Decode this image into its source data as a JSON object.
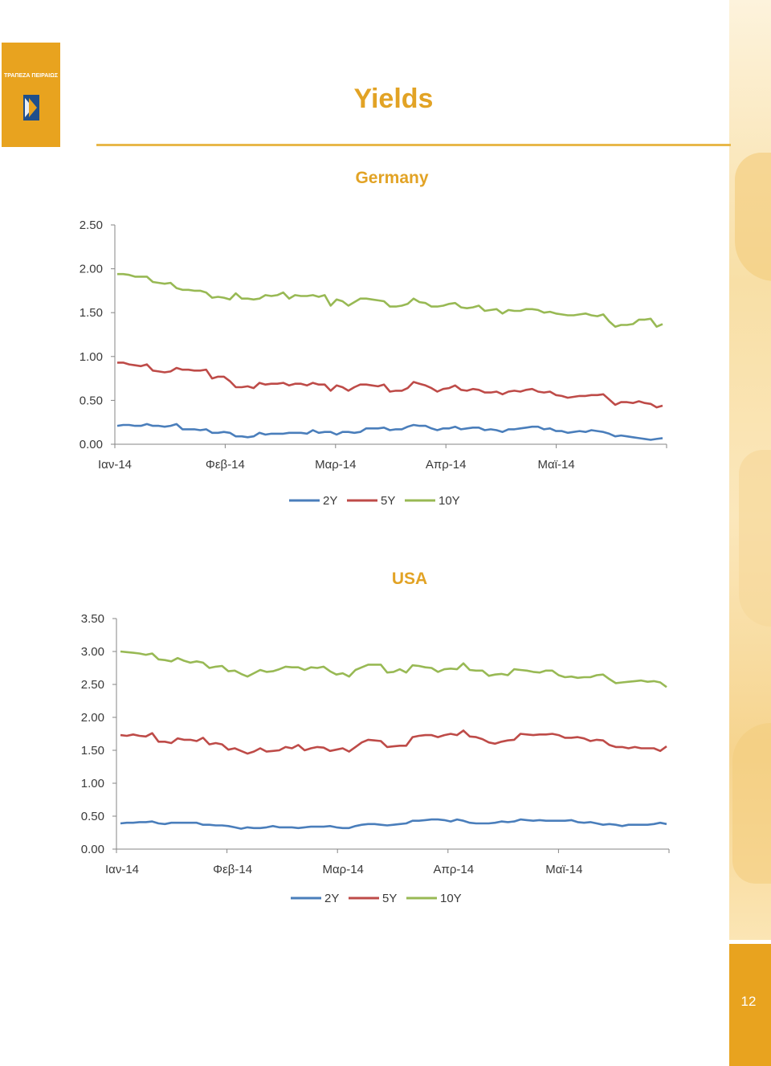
{
  "logo": {
    "text": "ΤΡΑΠΕΖΑ ΠΕΙΡΑΙΩΣ",
    "icon": "bank-logo-icon",
    "color": "#e8a31f"
  },
  "page": {
    "title": "Yields",
    "number": "12"
  },
  "colors": {
    "accent": "#e2a325",
    "series_2Y": "#4a7ebb",
    "series_5Y": "#be4b48",
    "series_10Y": "#98b954"
  },
  "chart_data": [
    {
      "type": "line",
      "title": "Germany",
      "xlabel": "",
      "ylabel": "",
      "ylim": [
        0,
        2.5
      ],
      "yticks": [
        "0.00",
        "0.50",
        "1.00",
        "1.50",
        "2.00",
        "2.50"
      ],
      "xticks": [
        "Ιαν-14",
        "Φεβ-14",
        "Μαρ-14",
        "Απρ-14",
        "Μαϊ-14"
      ],
      "legend": "bottom",
      "grid": false,
      "series": [
        {
          "name": "2Y",
          "values": [
            0.21,
            0.22,
            0.22,
            0.21,
            0.21,
            0.23,
            0.21,
            0.21,
            0.2,
            0.21,
            0.23,
            0.17,
            0.17,
            0.17,
            0.16,
            0.17,
            0.13,
            0.13,
            0.14,
            0.13,
            0.09,
            0.09,
            0.08,
            0.09,
            0.13,
            0.11,
            0.12,
            0.12,
            0.12,
            0.13,
            0.13,
            0.13,
            0.12,
            0.16,
            0.13,
            0.14,
            0.14,
            0.11,
            0.14,
            0.14,
            0.13,
            0.14,
            0.18,
            0.18,
            0.18,
            0.19,
            0.16,
            0.17,
            0.17,
            0.2,
            0.22,
            0.21,
            0.21,
            0.18,
            0.16,
            0.18,
            0.18,
            0.2,
            0.17,
            0.18,
            0.19,
            0.19,
            0.16,
            0.17,
            0.16,
            0.14,
            0.17,
            0.17,
            0.18,
            0.19,
            0.2,
            0.2,
            0.17,
            0.18,
            0.15,
            0.15,
            0.13,
            0.14,
            0.15,
            0.14,
            0.16,
            0.15,
            0.14,
            0.12,
            0.09,
            0.1,
            0.09,
            0.08,
            0.07,
            0.06,
            0.05,
            0.06,
            0.07
          ]
        },
        {
          "name": "5Y",
          "values": [
            0.93,
            0.93,
            0.91,
            0.9,
            0.89,
            0.91,
            0.84,
            0.83,
            0.82,
            0.83,
            0.87,
            0.85,
            0.85,
            0.84,
            0.84,
            0.85,
            0.75,
            0.77,
            0.77,
            0.72,
            0.65,
            0.65,
            0.66,
            0.64,
            0.7,
            0.68,
            0.69,
            0.69,
            0.7,
            0.67,
            0.69,
            0.69,
            0.67,
            0.7,
            0.68,
            0.68,
            0.61,
            0.67,
            0.65,
            0.61,
            0.65,
            0.68,
            0.68,
            0.67,
            0.66,
            0.68,
            0.6,
            0.61,
            0.61,
            0.64,
            0.71,
            0.69,
            0.67,
            0.64,
            0.6,
            0.63,
            0.64,
            0.67,
            0.62,
            0.61,
            0.63,
            0.62,
            0.59,
            0.59,
            0.6,
            0.57,
            0.6,
            0.61,
            0.6,
            0.62,
            0.63,
            0.6,
            0.59,
            0.6,
            0.56,
            0.55,
            0.53,
            0.54,
            0.55,
            0.55,
            0.56,
            0.56,
            0.57,
            0.51,
            0.45,
            0.48,
            0.48,
            0.47,
            0.49,
            0.47,
            0.46,
            0.42,
            0.44
          ]
        },
        {
          "name": "10Y",
          "values": [
            1.94,
            1.94,
            1.93,
            1.91,
            1.91,
            1.91,
            1.85,
            1.84,
            1.83,
            1.84,
            1.78,
            1.76,
            1.76,
            1.75,
            1.75,
            1.73,
            1.67,
            1.68,
            1.67,
            1.65,
            1.72,
            1.66,
            1.66,
            1.65,
            1.66,
            1.7,
            1.69,
            1.7,
            1.73,
            1.66,
            1.7,
            1.69,
            1.69,
            1.7,
            1.68,
            1.7,
            1.58,
            1.65,
            1.63,
            1.58,
            1.62,
            1.66,
            1.66,
            1.65,
            1.64,
            1.63,
            1.57,
            1.57,
            1.58,
            1.6,
            1.66,
            1.62,
            1.61,
            1.57,
            1.57,
            1.58,
            1.6,
            1.61,
            1.56,
            1.55,
            1.56,
            1.58,
            1.52,
            1.53,
            1.54,
            1.49,
            1.53,
            1.52,
            1.52,
            1.54,
            1.54,
            1.53,
            1.5,
            1.51,
            1.49,
            1.48,
            1.47,
            1.47,
            1.48,
            1.49,
            1.47,
            1.46,
            1.48,
            1.4,
            1.34,
            1.36,
            1.36,
            1.37,
            1.42,
            1.42,
            1.43,
            1.34,
            1.37
          ]
        }
      ]
    },
    {
      "type": "line",
      "title": "USA",
      "xlabel": "",
      "ylabel": "",
      "ylim": [
        0,
        3.5
      ],
      "yticks": [
        "0.00",
        "0.50",
        "1.00",
        "1.50",
        "2.00",
        "2.50",
        "3.00",
        "3.50"
      ],
      "xticks": [
        "Ιαν-14",
        "Φεβ-14",
        "Μαρ-14",
        "Απρ-14",
        "Μαϊ-14"
      ],
      "legend": "bottom",
      "grid": false,
      "series": [
        {
          "name": "2Y",
          "values": [
            0.39,
            0.4,
            0.4,
            0.41,
            0.41,
            0.42,
            0.39,
            0.38,
            0.4,
            0.4,
            0.4,
            0.4,
            0.4,
            0.37,
            0.37,
            0.36,
            0.36,
            0.35,
            0.33,
            0.31,
            0.33,
            0.32,
            0.32,
            0.33,
            0.35,
            0.33,
            0.33,
            0.33,
            0.32,
            0.33,
            0.34,
            0.34,
            0.34,
            0.35,
            0.33,
            0.32,
            0.32,
            0.35,
            0.37,
            0.38,
            0.38,
            0.37,
            0.36,
            0.37,
            0.38,
            0.39,
            0.43,
            0.43,
            0.44,
            0.45,
            0.45,
            0.44,
            0.42,
            0.45,
            0.43,
            0.4,
            0.39,
            0.39,
            0.39,
            0.4,
            0.42,
            0.41,
            0.42,
            0.45,
            0.44,
            0.43,
            0.44,
            0.43,
            0.43,
            0.43,
            0.43,
            0.44,
            0.41,
            0.4,
            0.41,
            0.39,
            0.37,
            0.38,
            0.37,
            0.35,
            0.37,
            0.37,
            0.37,
            0.37,
            0.38,
            0.4,
            0.38
          ]
        },
        {
          "name": "5Y",
          "values": [
            1.73,
            1.72,
            1.74,
            1.72,
            1.71,
            1.76,
            1.63,
            1.63,
            1.61,
            1.68,
            1.66,
            1.66,
            1.64,
            1.69,
            1.59,
            1.61,
            1.59,
            1.51,
            1.53,
            1.49,
            1.45,
            1.48,
            1.53,
            1.48,
            1.49,
            1.5,
            1.55,
            1.53,
            1.58,
            1.5,
            1.53,
            1.55,
            1.54,
            1.49,
            1.51,
            1.53,
            1.48,
            1.55,
            1.62,
            1.66,
            1.65,
            1.64,
            1.55,
            1.56,
            1.57,
            1.57,
            1.7,
            1.72,
            1.73,
            1.73,
            1.7,
            1.73,
            1.75,
            1.73,
            1.8,
            1.71,
            1.7,
            1.67,
            1.62,
            1.6,
            1.63,
            1.65,
            1.66,
            1.75,
            1.74,
            1.73,
            1.74,
            1.74,
            1.75,
            1.73,
            1.69,
            1.69,
            1.7,
            1.68,
            1.64,
            1.66,
            1.65,
            1.58,
            1.55,
            1.55,
            1.53,
            1.55,
            1.53,
            1.53,
            1.53,
            1.49,
            1.56
          ]
        },
        {
          "name": "10Y",
          "values": [
            3.0,
            2.99,
            2.98,
            2.97,
            2.95,
            2.97,
            2.88,
            2.87,
            2.85,
            2.9,
            2.86,
            2.83,
            2.85,
            2.83,
            2.75,
            2.77,
            2.78,
            2.7,
            2.71,
            2.66,
            2.62,
            2.67,
            2.72,
            2.69,
            2.7,
            2.73,
            2.77,
            2.76,
            2.76,
            2.72,
            2.76,
            2.75,
            2.77,
            2.7,
            2.65,
            2.67,
            2.62,
            2.72,
            2.76,
            2.8,
            2.8,
            2.8,
            2.68,
            2.69,
            2.73,
            2.68,
            2.79,
            2.78,
            2.76,
            2.75,
            2.69,
            2.73,
            2.74,
            2.73,
            2.82,
            2.72,
            2.71,
            2.71,
            2.63,
            2.65,
            2.66,
            2.64,
            2.73,
            2.72,
            2.71,
            2.69,
            2.68,
            2.71,
            2.71,
            2.64,
            2.61,
            2.62,
            2.6,
            2.61,
            2.61,
            2.64,
            2.65,
            2.58,
            2.52,
            2.53,
            2.54,
            2.55,
            2.56,
            2.54,
            2.55,
            2.53,
            2.46
          ]
        }
      ]
    }
  ]
}
